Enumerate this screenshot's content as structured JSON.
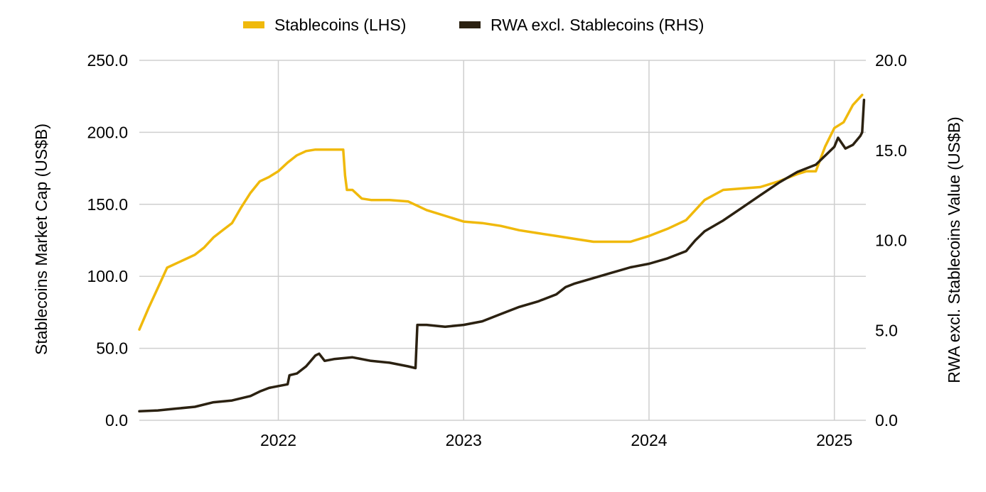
{
  "chart_data": {
    "type": "line",
    "legend": {
      "position": "top-center",
      "entries": [
        "Stablecoins (LHS)",
        "RWA excl. Stablecoins (RHS)"
      ]
    },
    "xlabel": "",
    "ylabel_left": "Stablecoins Market Cap (US$B)",
    "ylabel_right": "RWA excl. Stablecoins Value (US$B)",
    "x_ticks": [
      "2022",
      "2023",
      "2024",
      "2025"
    ],
    "x_tick_values": [
      2022.0,
      2023.0,
      2024.0,
      2025.0
    ],
    "xlim": [
      2021.25,
      2025.17
    ],
    "y_left_ticks": [
      "0.0",
      "50.0",
      "100.0",
      "150.0",
      "200.0",
      "250.0"
    ],
    "y_left_values": [
      0,
      50,
      100,
      150,
      200,
      250
    ],
    "ylim_left": [
      0,
      250
    ],
    "y_right_ticks": [
      "0.0",
      "5.0",
      "10.0",
      "15.0",
      "20.0"
    ],
    "y_right_values": [
      0,
      5,
      10,
      15,
      20
    ],
    "ylim_right": [
      0,
      20
    ],
    "grid": true,
    "colors": {
      "stablecoins": "#F0B90B",
      "rwa": "#2B2111",
      "grid": "#cfcfcf"
    },
    "series": [
      {
        "name": "Stablecoins (LHS)",
        "axis": "left",
        "color": "#F0B90B",
        "x": [
          2021.25,
          2021.3,
          2021.35,
          2021.4,
          2021.45,
          2021.5,
          2021.55,
          2021.6,
          2021.65,
          2021.7,
          2021.75,
          2021.8,
          2021.85,
          2021.9,
          2021.95,
          2022.0,
          2022.05,
          2022.1,
          2022.15,
          2022.2,
          2022.25,
          2022.3,
          2022.35,
          2022.36,
          2022.37,
          2022.4,
          2022.45,
          2022.5,
          2022.6,
          2022.7,
          2022.8,
          2022.9,
          2023.0,
          2023.1,
          2023.2,
          2023.3,
          2023.4,
          2023.5,
          2023.6,
          2023.7,
          2023.8,
          2023.9,
          2024.0,
          2024.1,
          2024.2,
          2024.25,
          2024.3,
          2024.4,
          2024.5,
          2024.6,
          2024.7,
          2024.8,
          2024.85,
          2024.9,
          2024.95,
          2025.0,
          2025.05,
          2025.1,
          2025.15
        ],
        "values": [
          63,
          78,
          92,
          106,
          109,
          112,
          115,
          120,
          127,
          132,
          137,
          148,
          158,
          166,
          169,
          173,
          179,
          184,
          187,
          188,
          188,
          188,
          188,
          170,
          160,
          160,
          154,
          153,
          153,
          152,
          146,
          142,
          138,
          137,
          135,
          132,
          130,
          128,
          126,
          124,
          124,
          124,
          128,
          133,
          139,
          146,
          153,
          160,
          161,
          162,
          166,
          171,
          173,
          173,
          190,
          203,
          207,
          219,
          226
        ]
      },
      {
        "name": "RWA excl. Stablecoins (RHS)",
        "axis": "right",
        "color": "#2B2111",
        "x": [
          2021.25,
          2021.35,
          2021.45,
          2021.55,
          2021.65,
          2021.75,
          2021.85,
          2021.9,
          2021.95,
          2022.0,
          2022.05,
          2022.06,
          2022.1,
          2022.15,
          2022.2,
          2022.22,
          2022.25,
          2022.3,
          2022.4,
          2022.5,
          2022.6,
          2022.7,
          2022.74,
          2022.75,
          2022.8,
          2022.9,
          2023.0,
          2023.1,
          2023.2,
          2023.3,
          2023.4,
          2023.5,
          2023.55,
          2023.6,
          2023.7,
          2023.8,
          2023.9,
          2024.0,
          2024.1,
          2024.2,
          2024.25,
          2024.3,
          2024.4,
          2024.5,
          2024.6,
          2024.7,
          2024.8,
          2024.9,
          2025.0,
          2025.02,
          2025.06,
          2025.1,
          2025.14,
          2025.15,
          2025.16
        ],
        "values": [
          0.5,
          0.55,
          0.65,
          0.75,
          1.0,
          1.1,
          1.35,
          1.6,
          1.8,
          1.9,
          2.0,
          2.5,
          2.6,
          3.0,
          3.6,
          3.7,
          3.3,
          3.4,
          3.5,
          3.3,
          3.2,
          3.0,
          2.9,
          5.3,
          5.3,
          5.2,
          5.3,
          5.5,
          5.9,
          6.3,
          6.6,
          7.0,
          7.4,
          7.6,
          7.9,
          8.2,
          8.5,
          8.7,
          9.0,
          9.4,
          10.0,
          10.5,
          11.1,
          11.8,
          12.5,
          13.2,
          13.8,
          14.2,
          15.2,
          15.7,
          15.1,
          15.3,
          15.8,
          16.0,
          17.8
        ]
      }
    ]
  }
}
